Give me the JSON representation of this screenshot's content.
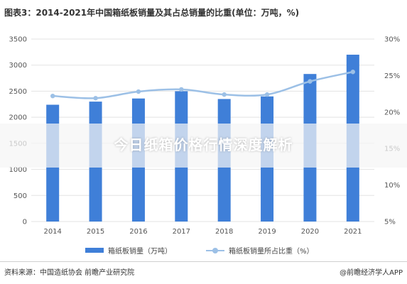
{
  "title": "图表3：2014-2021年中国箱纸板销量及其占总销量的比重(单位：万吨，%)",
  "banner": "今日纸箱价格行情深度解析",
  "footer": {
    "source": "资料来源：中国造纸协会 前瞻产业研究院",
    "brand": "@前瞻经济学人APP"
  },
  "colors": {
    "bar": "#3f7fd8",
    "line": "#9cc0e6",
    "grid": "#e3e3e3"
  },
  "chart_data": {
    "type": "bar",
    "categories": [
      "2014",
      "2015",
      "2016",
      "2017",
      "2018",
      "2019",
      "2020",
      "2021"
    ],
    "series": [
      {
        "name": "箱纸板销量（万吨）",
        "type": "bar",
        "axis": "left",
        "values": [
          2240,
          2300,
          2360,
          2500,
          2350,
          2400,
          2830,
          3200
        ]
      },
      {
        "name": "箱纸板销量所占比重（%）",
        "type": "line",
        "axis": "right",
        "values": [
          22.2,
          21.9,
          22.8,
          23.1,
          22.4,
          22.4,
          24.2,
          25.5
        ]
      }
    ],
    "y_left": {
      "min": 0,
      "max": 3500,
      "ticks": [
        "0",
        "500",
        "1000",
        "1500",
        "2000",
        "2500",
        "3000",
        "3500"
      ]
    },
    "y_right": {
      "min": 5,
      "max": 30,
      "ticks": [
        "5%",
        "10%",
        "15%",
        "20%",
        "25%",
        "30%"
      ]
    },
    "grid": true,
    "legend_position": "bottom"
  }
}
